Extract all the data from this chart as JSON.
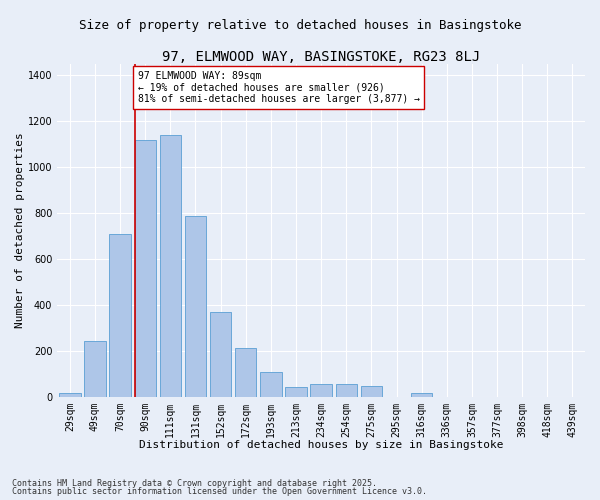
{
  "title1": "97, ELMWOOD WAY, BASINGSTOKE, RG23 8LJ",
  "title2": "Size of property relative to detached houses in Basingstoke",
  "xlabel": "Distribution of detached houses by size in Basingstoke",
  "ylabel": "Number of detached properties",
  "categories": [
    "29sqm",
    "49sqm",
    "70sqm",
    "90sqm",
    "111sqm",
    "131sqm",
    "152sqm",
    "172sqm",
    "193sqm",
    "213sqm",
    "234sqm",
    "254sqm",
    "275sqm",
    "295sqm",
    "316sqm",
    "336sqm",
    "357sqm",
    "377sqm",
    "398sqm",
    "418sqm",
    "439sqm"
  ],
  "values": [
    20,
    245,
    710,
    1120,
    1140,
    790,
    370,
    215,
    110,
    45,
    55,
    55,
    50,
    0,
    20,
    0,
    0,
    0,
    0,
    0,
    0
  ],
  "bar_color": "#aec6e8",
  "bar_edge_color": "#5a9fd4",
  "vline_color": "#cc0000",
  "annotation_text": "97 ELMWOOD WAY: 89sqm\n← 19% of detached houses are smaller (926)\n81% of semi-detached houses are larger (3,877) →",
  "annotation_box_color": "#ffffff",
  "annotation_box_edge": "#cc0000",
  "ylim": [
    0,
    1450
  ],
  "yticks": [
    0,
    200,
    400,
    600,
    800,
    1000,
    1200,
    1400
  ],
  "bg_color": "#e8eef8",
  "footer1": "Contains HM Land Registry data © Crown copyright and database right 2025.",
  "footer2": "Contains public sector information licensed under the Open Government Licence v3.0.",
  "title1_fontsize": 10,
  "title2_fontsize": 9,
  "xlabel_fontsize": 8,
  "ylabel_fontsize": 8,
  "tick_fontsize": 7,
  "footer_fontsize": 6,
  "annotation_fontsize": 7
}
